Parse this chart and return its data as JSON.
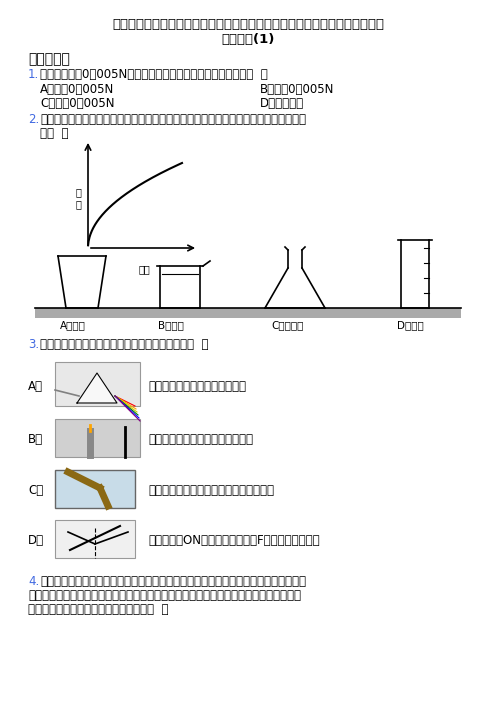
{
  "title_line1": "新浙教初一科学下册第二学期七年级科学期末复习：期末模拟试题压轴试卷试",
  "title_line2": "卷及答案(1)",
  "section1": "一、选择题",
  "q1_num": "1.",
  "q1_text": "一只蚂蚁举着0．005N的树叶保持静止，蚂蚁对树叶的支持力（  ）",
  "q1_A": "A．大于0．005N",
  "q1_B": "B．等于0．005N",
  "q1_C": "C．小于0．005N",
  "q1_D": "D．不断增加",
  "q2_num": "2.",
  "q2_text": "匀速地向某容器内注满水，容器底所受水的压强与注水时间的关系如图，这个容器可能",
  "q2_text2": "是（  ）",
  "graph_xlabel": "时间",
  "graph_ylabel": "压强",
  "q2_A": "A．量杯",
  "q2_B": "B．烧杯",
  "q2_C": "C．锥形瓶",
  "q2_D": "D．量筒",
  "q3_num": "3.",
  "q3_text": "下列对各光学现象的相应解释或描述，正确的是（  ）",
  "q3_A_label": "A．",
  "q3_A_text": "光的色散是由于光的反射形成的",
  "q3_B_label": "B．",
  "q3_B_text": "蜡烛远离平面镜时，蜡烛的像变小",
  "q3_C_label": "C．",
  "q3_C_text": "插在水中的铅笔折断了，是因为光的折射",
  "q3_D_label": "D．",
  "q3_D_text": "只将平板镜ON由后旋转，还能在F板上看到反射光线",
  "q4_num": "4.",
  "q4_line1": "二十四节气是上古农耕文明的产物，在国际气象界被誉为中国第五大发明。还流传了好",
  "q4_line2": "些谚语指导着我们的农业生产。如清明前后，种瓜种豆，口露早，寒露迟，秋分种麦正适",
  "q4_line3": "宜，关于这些谚语，下列说法描述的是（  ）",
  "bg_color": "#ffffff",
  "text_color": "#000000",
  "blue_color": "#4169e1",
  "title_fontsize": 9.5,
  "body_fontsize": 8.5
}
